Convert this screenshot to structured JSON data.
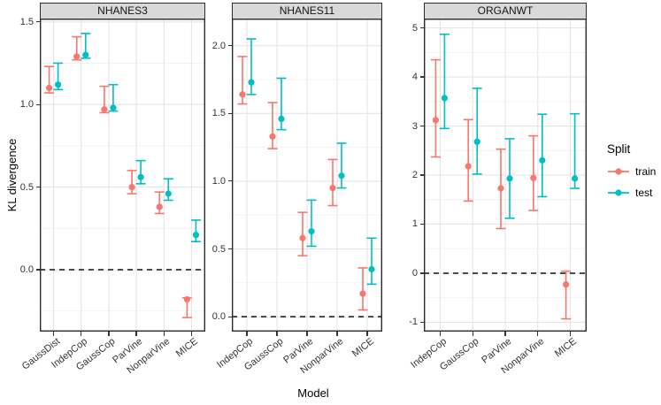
{
  "figure": {
    "y_axis_title": "KL divergence",
    "x_axis_title": "Model",
    "legend": {
      "title": "Split",
      "items": [
        {
          "label": "train",
          "color": "#F8766D"
        },
        {
          "label": "test",
          "color": "#00BFC4"
        }
      ]
    }
  },
  "colors": {
    "train": "#F8766D",
    "test": "#00BFC4",
    "strip_bg": "#D9D9D9",
    "panel_border": "#2B2B2B",
    "grid_major": "#E5E5E5",
    "grid_minor": "#F1F1F1",
    "ref_line": "#111111",
    "tick_text": "#333333"
  },
  "chart_data": [
    {
      "type": "pointrange",
      "title": "NHANES3",
      "categories": [
        "GaussDist",
        "IndepCop",
        "GaussCop",
        "ParVine",
        "NonparVine",
        "MICE"
      ],
      "ylim": [
        -0.375,
        1.52
      ],
      "yticks": [
        0.0,
        0.5,
        1.0,
        1.5
      ],
      "ytick_labels": [
        "0.0",
        "0.5",
        "1.0",
        "1.5"
      ],
      "ref_line_y": 0,
      "legend_position": "right",
      "grid": true,
      "series": [
        {
          "name": "train",
          "values": [
            1.1,
            1.29,
            0.97,
            0.5,
            0.38,
            -0.18
          ],
          "lower": [
            1.07,
            1.27,
            0.95,
            0.46,
            0.34,
            -0.29
          ],
          "upper": [
            1.23,
            1.41,
            1.11,
            0.6,
            0.47,
            -0.17
          ]
        },
        {
          "name": "test",
          "values": [
            1.12,
            1.3,
            0.98,
            0.56,
            0.46,
            0.21
          ],
          "lower": [
            1.09,
            1.28,
            0.96,
            0.52,
            0.42,
            0.17
          ],
          "upper": [
            1.25,
            1.43,
            1.12,
            0.66,
            0.55,
            0.3
          ]
        }
      ]
    },
    {
      "type": "pointrange",
      "title": "NHANES11",
      "categories": [
        "IndepCop",
        "GaussCop",
        "ParVine",
        "NonparVine",
        "MICE"
      ],
      "ylim": [
        -0.11,
        2.2
      ],
      "yticks": [
        0.0,
        0.5,
        1.0,
        1.5,
        2.0
      ],
      "ytick_labels": [
        "0.0",
        "0.5",
        "1.0",
        "1.5",
        "2.0"
      ],
      "ref_line_y": 0,
      "grid": true,
      "series": [
        {
          "name": "train",
          "values": [
            1.64,
            1.33,
            0.58,
            0.95,
            0.17
          ],
          "lower": [
            1.57,
            1.24,
            0.45,
            0.82,
            0.05
          ],
          "upper": [
            1.92,
            1.58,
            0.77,
            1.16,
            0.36
          ]
        },
        {
          "name": "test",
          "values": [
            1.73,
            1.46,
            0.63,
            1.04,
            0.35
          ],
          "lower": [
            1.64,
            1.38,
            0.52,
            0.95,
            0.24
          ],
          "upper": [
            2.05,
            1.76,
            0.86,
            1.28,
            0.58
          ]
        }
      ]
    },
    {
      "type": "pointrange",
      "title": "ORGANWT",
      "categories": [
        "IndepCop",
        "GaussCop",
        "ParVine",
        "NonparVine",
        "MICE"
      ],
      "ylim": [
        -1.19,
        5.19
      ],
      "yticks": [
        -1,
        0,
        1,
        2,
        3,
        4,
        5
      ],
      "ytick_labels": [
        "-1",
        "0",
        "1",
        "2",
        "3",
        "4",
        "5"
      ],
      "ref_line_y": 0,
      "grid": true,
      "series": [
        {
          "name": "train",
          "values": [
            3.12,
            2.18,
            1.73,
            1.94,
            -0.23
          ],
          "lower": [
            2.37,
            1.47,
            0.91,
            1.28,
            -0.93
          ],
          "upper": [
            4.35,
            3.13,
            2.53,
            2.8,
            0.04
          ]
        },
        {
          "name": "test",
          "values": [
            3.57,
            2.68,
            1.93,
            2.3,
            1.93
          ],
          "lower": [
            2.95,
            2.02,
            1.12,
            1.56,
            1.73
          ],
          "upper": [
            4.87,
            3.77,
            2.74,
            3.24,
            3.25
          ]
        }
      ]
    }
  ]
}
